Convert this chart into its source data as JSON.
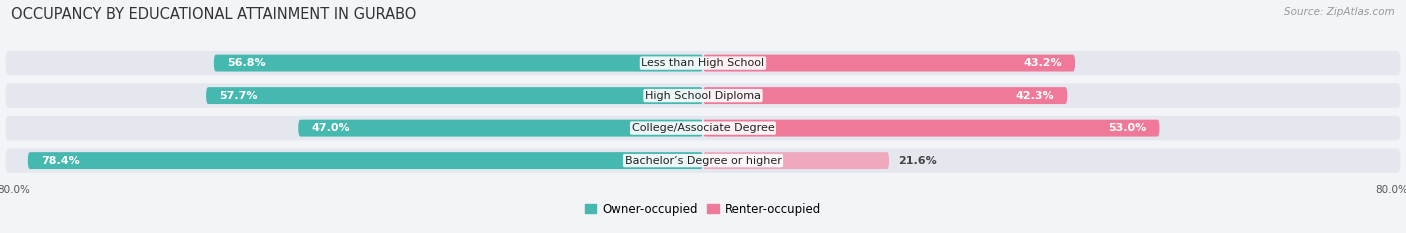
{
  "title": "OCCUPANCY BY EDUCATIONAL ATTAINMENT IN GURABO",
  "source": "Source: ZipAtlas.com",
  "categories": [
    "Less than High School",
    "High School Diploma",
    "College/Associate Degree",
    "Bachelor’s Degree or higher"
  ],
  "owner_values": [
    56.8,
    57.7,
    47.0,
    78.4
  ],
  "renter_values": [
    43.2,
    42.3,
    53.0,
    21.6
  ],
  "owner_color": "#45b8b0",
  "renter_color": "#f07898",
  "renter_color_light": "#f0a8bc",
  "owner_label": "Owner-occupied",
  "renter_label": "Renter-occupied",
  "xlim": 80.0,
  "background_color": "#f2f4f7",
  "bar_background": "#e4e8ee",
  "title_fontsize": 10.5,
  "source_fontsize": 7.5,
  "label_fontsize": 8,
  "value_fontsize": 8,
  "legend_fontsize": 8.5,
  "renter_inside_threshold": 35
}
